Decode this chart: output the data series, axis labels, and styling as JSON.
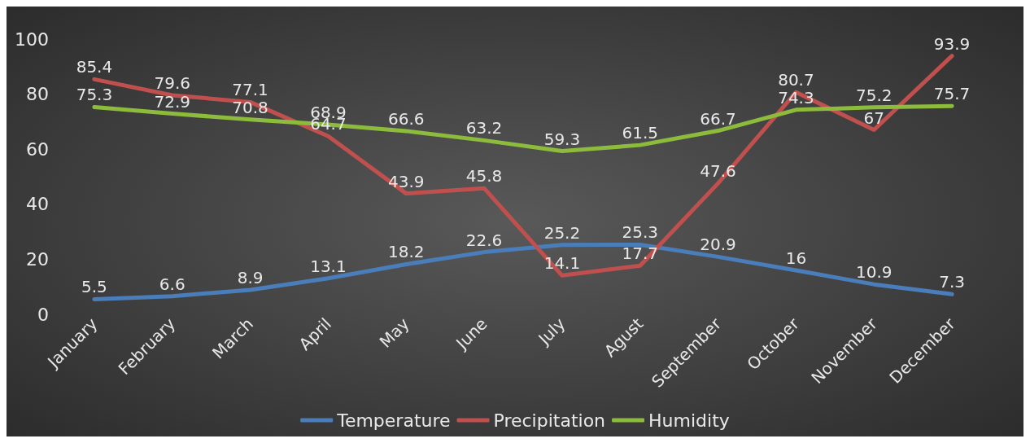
{
  "chart_data": {
    "type": "line",
    "categories": [
      "January",
      "February",
      "March",
      "April",
      "May",
      "June",
      "July",
      "Agust",
      "September",
      "October",
      "November",
      "December"
    ],
    "series": [
      {
        "name": "Temperature",
        "color": "#4a7ebb",
        "values": [
          5.5,
          6.6,
          8.9,
          13.1,
          18.2,
          22.6,
          25.2,
          25.3,
          20.9,
          16,
          10.9,
          7.3
        ]
      },
      {
        "name": "Precipitation",
        "color": "#c0504d",
        "values": [
          85.4,
          79.6,
          77.1,
          64.7,
          43.9,
          45.8,
          14.1,
          17.7,
          47.6,
          80.7,
          67,
          93.9
        ]
      },
      {
        "name": "Humidity",
        "color": "#8dbb3c",
        "values": [
          75.3,
          72.9,
          70.8,
          68.9,
          66.6,
          63.2,
          59.3,
          61.5,
          66.7,
          74.3,
          75.2,
          75.7
        ]
      }
    ],
    "ylim": [
      0,
      100
    ],
    "yticks": [
      0,
      20,
      40,
      60,
      80,
      100
    ],
    "grid": false,
    "legend": "bottom",
    "data_labels": true,
    "marker": "none",
    "line_style": "solid"
  }
}
